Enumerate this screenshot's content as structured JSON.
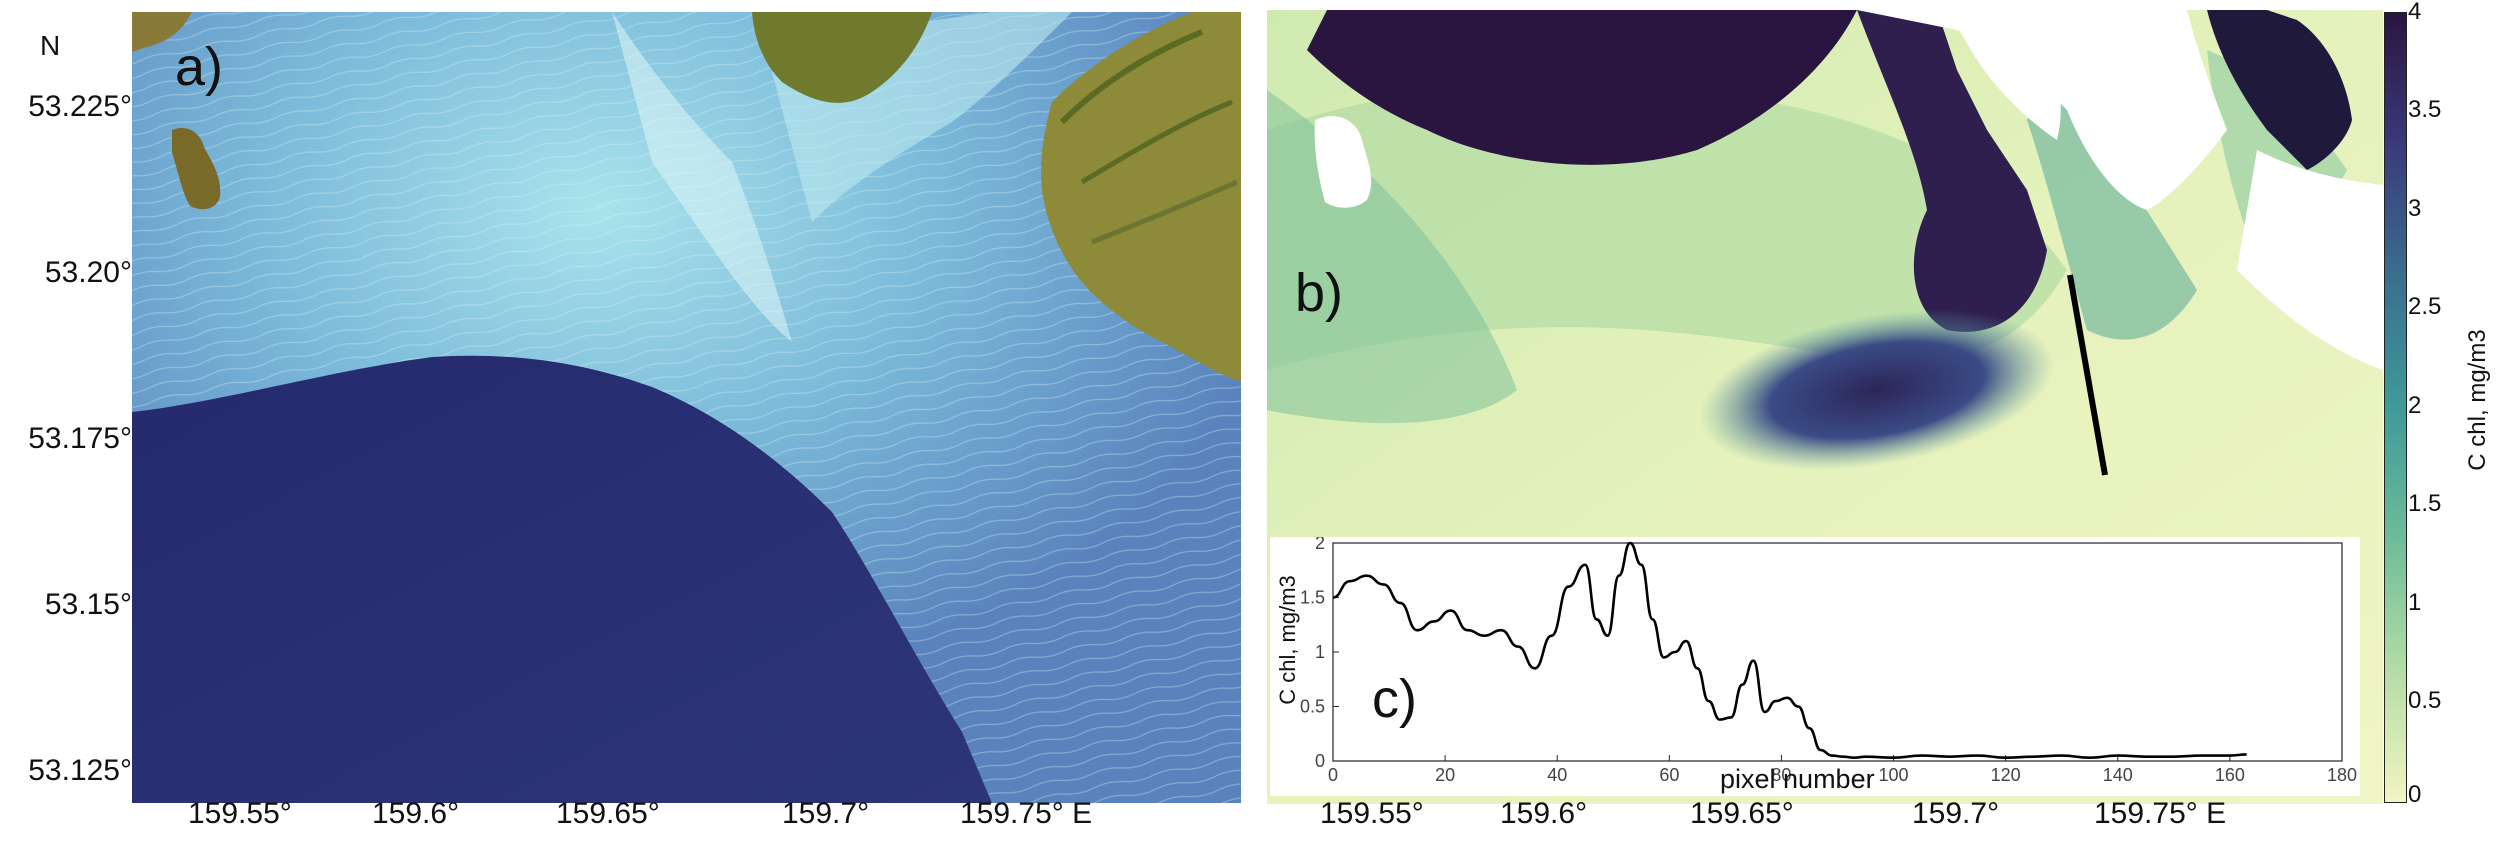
{
  "panels": {
    "a": {
      "label": "a)",
      "north": "N",
      "lat_ticks": [
        "53.225°",
        "53.20°",
        "53.175°",
        "53.15°",
        "53.125°"
      ],
      "lon_ticks": [
        "159.55°",
        "159.6°",
        "159.65°",
        "159.7°",
        "159.75° E"
      ]
    },
    "b": {
      "label": "b)",
      "lon_ticks": [
        "159.55°",
        "159.6°",
        "159.65°",
        "159.7°",
        "159.75° E"
      ],
      "colorbar": {
        "label": "C chl, mg/m3",
        "ticks": [
          "4",
          "3.5",
          "3",
          "2.5",
          "2",
          "1.5",
          "1",
          "0.5",
          "0"
        ],
        "colors": [
          "#2a1540",
          "#3a3a7a",
          "#3a6e8e",
          "#3f9a98",
          "#6dbc98",
          "#b4dca6",
          "#f2f4c4"
        ]
      }
    },
    "c": {
      "label": "c)"
    }
  },
  "chart_data": {
    "type": "line",
    "xlabel": "pixel number",
    "ylabel": "C chl, mg/m3",
    "xlim": [
      0,
      180
    ],
    "ylim": [
      0,
      2
    ],
    "xticks": [
      "0",
      "20",
      "40",
      "60",
      "80",
      "100",
      "120",
      "140",
      "160",
      "180"
    ],
    "yticks": [
      "0",
      "0.5",
      "1",
      "1.5",
      "2"
    ],
    "series": [
      {
        "x": [
          0,
          3,
          6,
          9,
          12,
          15,
          18,
          21,
          24,
          27,
          30,
          33,
          36,
          39,
          42,
          45,
          47,
          49,
          51,
          53,
          55,
          57,
          59,
          61,
          63,
          65,
          67,
          69,
          71,
          73,
          75,
          77,
          79,
          81,
          83,
          85,
          87,
          89,
          91,
          93,
          95,
          100,
          105,
          110,
          115,
          120,
          125,
          130,
          135,
          140,
          145,
          150,
          155,
          160,
          163
        ],
        "y": [
          1.5,
          1.65,
          1.7,
          1.62,
          1.45,
          1.2,
          1.28,
          1.38,
          1.2,
          1.15,
          1.2,
          1.05,
          0.85,
          1.15,
          1.6,
          1.8,
          1.3,
          1.15,
          1.7,
          2.0,
          1.8,
          1.3,
          0.95,
          1.0,
          1.1,
          0.85,
          0.55,
          0.38,
          0.4,
          0.7,
          0.92,
          0.45,
          0.55,
          0.58,
          0.5,
          0.3,
          0.1,
          0.05,
          0.04,
          0.03,
          0.04,
          0.03,
          0.05,
          0.04,
          0.05,
          0.03,
          0.04,
          0.05,
          0.03,
          0.05,
          0.04,
          0.04,
          0.05,
          0.05,
          0.06
        ]
      }
    ]
  }
}
